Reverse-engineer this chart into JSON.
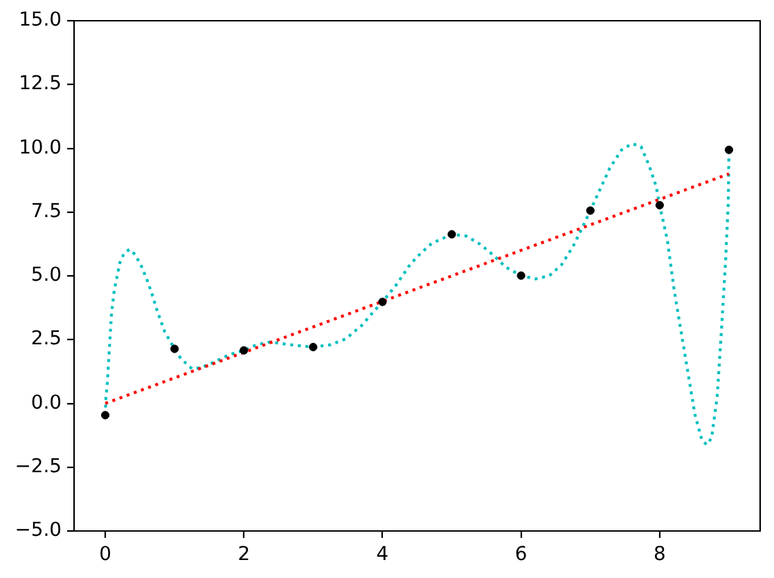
{
  "chart_data": {
    "type": "scatter",
    "xlim": [
      -0.45,
      9.45
    ],
    "xticks": [
      0,
      2,
      4,
      6,
      8
    ],
    "ylim": [
      -5,
      15
    ],
    "yticks": [
      {
        "value": -5,
        "label": "−5.0"
      },
      {
        "value": -2.5,
        "label": "−2.5"
      },
      {
        "value": 0,
        "label": "0.0"
      },
      {
        "value": 2.5,
        "label": "2.5"
      },
      {
        "value": 5,
        "label": "5.0"
      },
      {
        "value": 7.5,
        "label": "7.5"
      },
      {
        "value": 10,
        "label": "10.0"
      },
      {
        "value": 12.5,
        "label": "12.5"
      },
      {
        "value": 15,
        "label": "15.0"
      }
    ],
    "grid": false,
    "legend": false,
    "series": [
      {
        "color": "#000000",
        "marker": "circle",
        "x": [
          0,
          1,
          2,
          3,
          4,
          5,
          6,
          7,
          8,
          9
        ],
        "values": [
          -0.46,
          2.14,
          2.08,
          2.21,
          3.98,
          6.63,
          5.01,
          7.56,
          7.77,
          9.94
        ]
      },
      {
        "type": "line",
        "color": "#ff0000",
        "marker": "none",
        "line_style": "dotted",
        "x": [
          0,
          9
        ],
        "values": [
          0,
          9
        ]
      },
      {
        "type": "line",
        "color": "#00bfbf",
        "marker": "none",
        "line_style": "dotted",
        "x": [
          0,
          0.01,
          0.03,
          0.05,
          0.07,
          0.09,
          0.13,
          0.17,
          0.21,
          0.27,
          0.35,
          0.43,
          0.53,
          0.61,
          0.69,
          0.75,
          0.86,
          1,
          1.09,
          1.25,
          1.38,
          1.58,
          1.78,
          2,
          2.18,
          2.38,
          2.61,
          2.81,
          3,
          3.25,
          3.47,
          3.71,
          3.85,
          4,
          4.2,
          4.4,
          4.55,
          4.71,
          5,
          5.21,
          5.41,
          5.61,
          5.78,
          6,
          6.21,
          6.41,
          6.58,
          6.75,
          6.88,
          7,
          7.11,
          7.28,
          7.45,
          7.6,
          7.73,
          7.85,
          7.95,
          8,
          8.11,
          8.21,
          8.31,
          8.41,
          8.51,
          8.61,
          8.68,
          8.75,
          8.83,
          8.89,
          8.95,
          8.99,
          9
        ],
        "values": [
          -0.46,
          0.22,
          0.82,
          1.72,
          2.62,
          3.53,
          4.43,
          4.97,
          5.51,
          5.88,
          6.04,
          5.84,
          5.33,
          4.79,
          4.16,
          3.62,
          2.8,
          2.14,
          1.76,
          1.36,
          1.4,
          1.63,
          1.9,
          2.08,
          2.3,
          2.41,
          2.32,
          2.26,
          2.21,
          2.3,
          2.53,
          3.08,
          3.53,
          3.98,
          4.65,
          5.45,
          5.88,
          6.27,
          6.63,
          6.56,
          6.24,
          5.79,
          5.34,
          5.01,
          4.88,
          5.01,
          5.42,
          6.15,
          6.87,
          7.56,
          8.22,
          9.22,
          9.94,
          10.18,
          10.07,
          9.31,
          8.5,
          7.77,
          6.42,
          4.43,
          2.8,
          1.18,
          -0.45,
          -1.44,
          -1.62,
          -1.35,
          0.27,
          2.8,
          5.51,
          7.86,
          9.94
        ]
      }
    ]
  }
}
